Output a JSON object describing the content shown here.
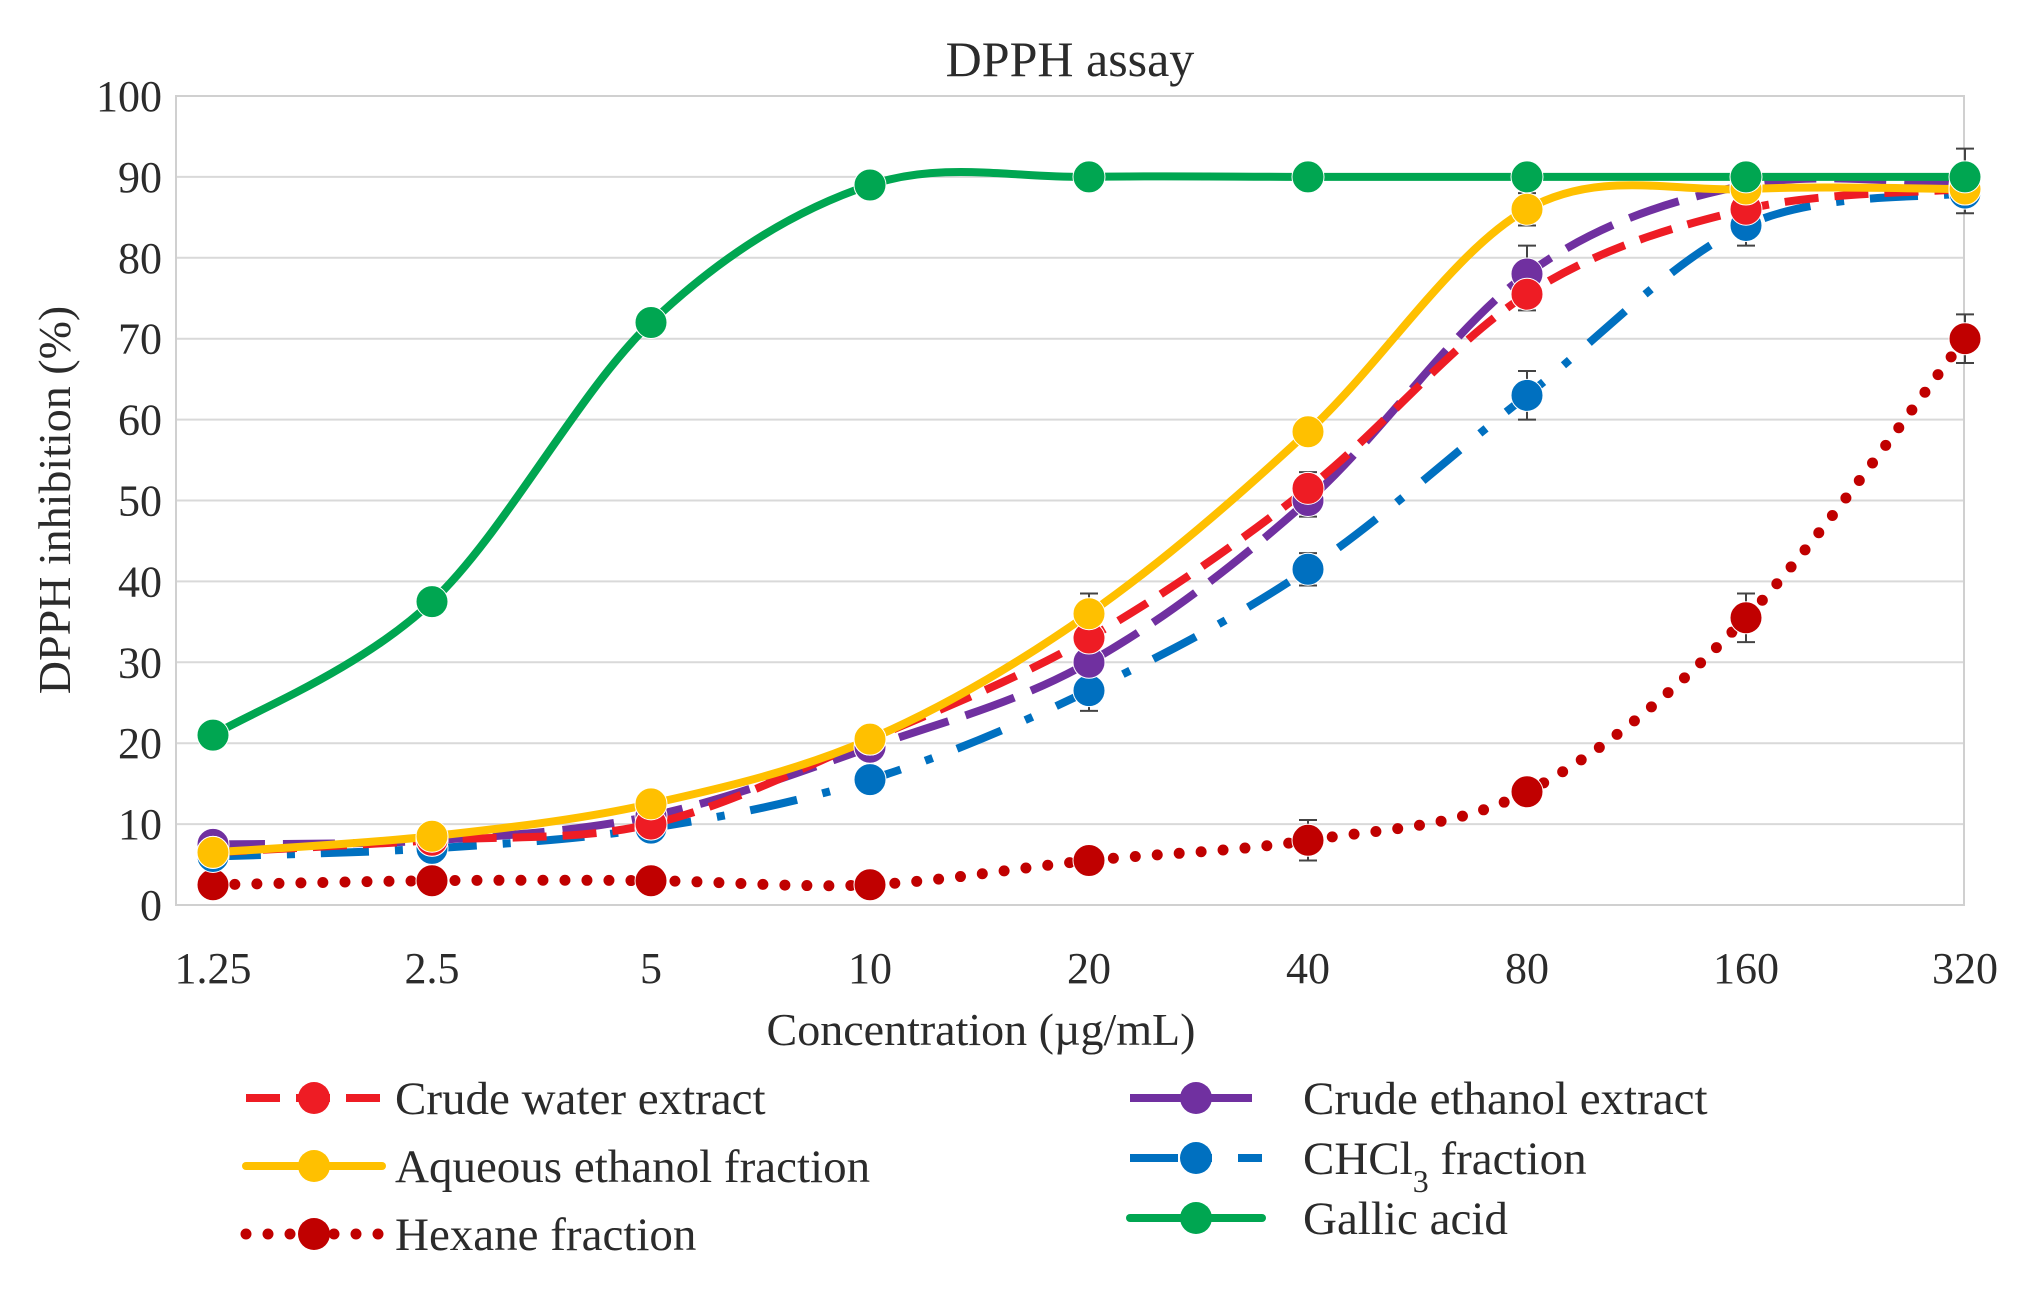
{
  "chart_data": {
    "type": "line",
    "title": "DPPH assay",
    "xlabel": "Concentration (µg/mL)",
    "ylabel": "DPPH inhibition (%)",
    "ylim": [
      0,
      100
    ],
    "y_ticks": [
      "0",
      "10",
      "20",
      "30",
      "40",
      "50",
      "60",
      "70",
      "80",
      "90",
      "100"
    ],
    "x_scale": "categorical (log2 spacing)",
    "categories": [
      "1.25",
      "2.5",
      "5",
      "10",
      "20",
      "40",
      "80",
      "160",
      "320"
    ],
    "grid": true,
    "legend_position": "bottom",
    "series": [
      {
        "name": "Crude water extract",
        "color": "#ee1c24",
        "line_style": "dashed",
        "marker": "circle",
        "values": [
          6.5,
          8,
          10,
          20.5,
          33,
          51.5,
          75.5,
          86,
          88.5
        ],
        "errors": [
          0.5,
          0.5,
          0.5,
          1,
          1.5,
          2,
          2,
          1.5,
          1.5
        ]
      },
      {
        "name": "Crude ethanol extract",
        "color": "#7030a0",
        "line_style": "long-dash",
        "marker": "circle",
        "values": [
          7.5,
          8,
          11,
          19.5,
          30,
          50,
          78,
          89,
          89
        ],
        "errors": [
          0.5,
          0.5,
          0.5,
          1,
          1.5,
          2,
          3.5,
          1.5,
          1.5
        ]
      },
      {
        "name": "Aqueous ethanol fraction",
        "color": "#ffc000",
        "line_style": "solid",
        "marker": "circle",
        "values": [
          6.5,
          8.5,
          12.5,
          20.5,
          36,
          58.5,
          86,
          88.5,
          88.5
        ],
        "errors": [
          0.5,
          0.5,
          0.5,
          1,
          2.5,
          1.5,
          2,
          1.5,
          1.5
        ]
      },
      {
        "name": "CHCl3 fraction",
        "color": "#0070c0",
        "line_style": "dash-dot",
        "marker": "circle",
        "values": [
          6,
          7,
          9.5,
          15.5,
          26.5,
          41.5,
          63,
          84,
          88
        ],
        "errors": [
          0.5,
          0.5,
          0.5,
          1,
          2.5,
          2,
          3,
          2.5,
          2.5
        ]
      },
      {
        "name": "Hexane fraction",
        "color": "#c00000",
        "line_style": "dotted",
        "marker": "circle",
        "values": [
          2.5,
          3,
          3,
          2.5,
          5.5,
          8,
          14,
          35.5,
          70
        ],
        "errors": [
          0.5,
          0.5,
          0.5,
          0.5,
          1,
          2.5,
          1.5,
          3,
          3
        ]
      },
      {
        "name": "Gallic acid",
        "color": "#00a651",
        "line_style": "solid",
        "marker": "circle",
        "values": [
          21,
          37.5,
          72,
          89,
          90,
          90,
          90,
          90,
          90
        ],
        "errors": [
          0.5,
          0.5,
          0.5,
          0.5,
          0.5,
          0.5,
          0.5,
          0.5,
          3.5
        ]
      }
    ]
  },
  "legend": {
    "items": [
      {
        "label": "Crude water extract",
        "series": 0
      },
      {
        "label": "Aqueous ethanol fraction",
        "series": 2
      },
      {
        "label": "Hexane fraction",
        "series": 4
      },
      {
        "label": "Crude ethanol extract",
        "series": 1
      },
      {
        "label": "CHCl",
        "subscript": "3",
        "suffix": " fraction",
        "series": 3
      },
      {
        "label": "Gallic acid",
        "series": 5
      }
    ]
  }
}
